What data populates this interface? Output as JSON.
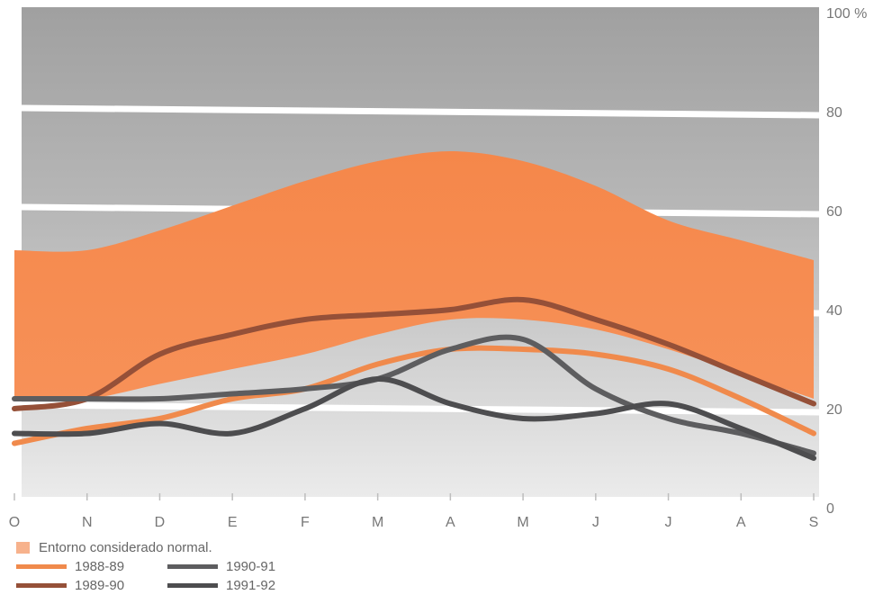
{
  "chart_data": {
    "type": "area",
    "title": "",
    "xlabel": "",
    "ylabel": "",
    "ylim": [
      0,
      100
    ],
    "yticks": [
      {
        "value": 0,
        "label": "0"
      },
      {
        "value": 20,
        "label": "20"
      },
      {
        "value": 40,
        "label": "40"
      },
      {
        "value": 60,
        "label": "60"
      },
      {
        "value": 80,
        "label": "80"
      },
      {
        "value": 100,
        "label": "100 %"
      }
    ],
    "categories": [
      "O",
      "N",
      "D",
      "E",
      "F",
      "M",
      "A",
      "M",
      "J",
      "J",
      "A",
      "S"
    ],
    "background_bands": {
      "colors": [
        "#e6e6e6",
        "#d6d6d6",
        "#c3c3c3",
        "#a9a9a9",
        "#9a9a9a"
      ],
      "gridlines": true
    },
    "normal_band": {
      "name": "Entorno considerado normal.",
      "color": "#f7894d",
      "upper": [
        52,
        52,
        56,
        61,
        66,
        70,
        72,
        70,
        65,
        58,
        54,
        50
      ],
      "lower": [
        22,
        22,
        25,
        28,
        31,
        35,
        38,
        38,
        36,
        32,
        27,
        22
      ]
    },
    "series": [
      {
        "name": "1988-89",
        "color": "#f08a4c",
        "values": [
          13,
          16,
          18,
          22,
          24,
          29,
          32,
          32,
          31,
          28,
          22,
          15
        ]
      },
      {
        "name": "1989-90",
        "color": "#955038",
        "values": [
          20,
          22,
          31,
          35,
          38,
          39,
          40,
          42,
          38,
          33,
          27,
          21
        ]
      },
      {
        "name": "1990-91",
        "color": "#5d5d5f",
        "values": [
          22,
          22,
          22,
          23,
          24,
          26,
          32,
          34,
          24,
          18,
          15,
          11
        ]
      },
      {
        "name": "1991-92",
        "color": "#4d4d4f",
        "values": [
          15,
          15,
          17,
          15,
          20,
          26,
          21,
          18,
          19,
          21,
          16,
          10
        ]
      }
    ],
    "legend": [
      {
        "label": "Entorno considerado normal.",
        "kind": "box",
        "color": "#f7b28c"
      },
      {
        "label": "1988-89",
        "kind": "line",
        "color": "#f08a4c"
      },
      {
        "label": "1990-91",
        "kind": "line",
        "color": "#5d5d5f"
      },
      {
        "label": "1989-90",
        "kind": "line",
        "color": "#955038"
      },
      {
        "label": "1991-92",
        "kind": "line",
        "color": "#4d4d4f"
      }
    ]
  }
}
